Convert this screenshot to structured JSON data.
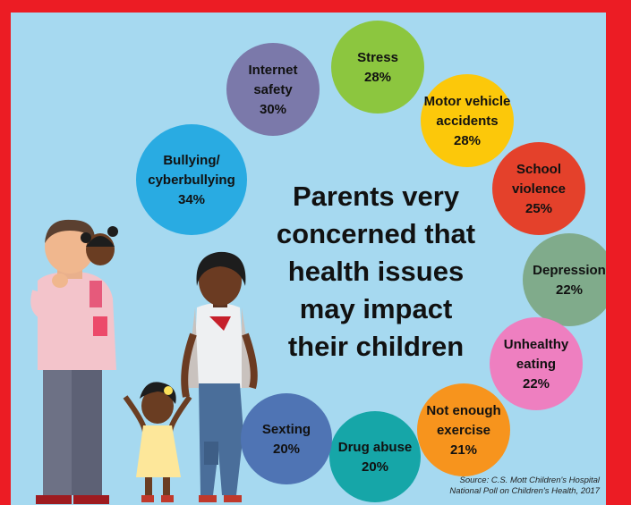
{
  "headline": {
    "lines": [
      "Parents very",
      "concerned that",
      "health issues",
      "may impact",
      "their children"
    ]
  },
  "source": {
    "line1": "Source: C.S. Mott Children's Hospital",
    "line2": "National Poll on Children's Health, 2017"
  },
  "colors": {
    "background": "#a6d9f0",
    "border": "#ec1c24"
  },
  "chart_data": {
    "type": "bubble",
    "title": "Parents very concerned that health issues may impact their children",
    "unit": "%",
    "categories": [
      {
        "label": [
          "Bullying/",
          "cyberbullying"
        ],
        "value": 34,
        "color": "#29abe2"
      },
      {
        "label": [
          "Internet",
          "safety"
        ],
        "value": 30,
        "color": "#7b79aa"
      },
      {
        "label": [
          "Stress"
        ],
        "value": 28,
        "color": "#8cc63f"
      },
      {
        "label": [
          "Motor vehicle",
          "accidents"
        ],
        "value": 28,
        "color": "#fcc80a"
      },
      {
        "label": [
          "School",
          "violence"
        ],
        "value": 25,
        "color": "#e4412b"
      },
      {
        "label": [
          "Depression"
        ],
        "value": 22,
        "color": "#80ab8b"
      },
      {
        "label": [
          "Unhealthy",
          "eating"
        ],
        "value": 22,
        "color": "#ee7fc0"
      },
      {
        "label": [
          "Not enough",
          "exercise"
        ],
        "value": 21,
        "color": "#f7941d"
      },
      {
        "label": [
          "Drug abuse"
        ],
        "value": 20,
        "color": "#16a6a8"
      },
      {
        "label": [
          "Sexting"
        ],
        "value": 20,
        "color": "#4f74b4"
      }
    ]
  }
}
